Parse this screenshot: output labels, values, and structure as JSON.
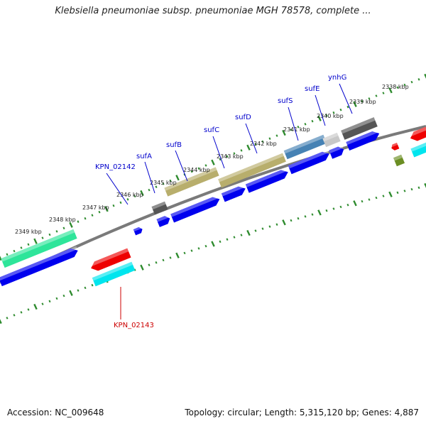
{
  "title": "Klebsiella pneumoniae subsp. pneumoniae MGH 78578, complete ...",
  "footer": {
    "accession": "Accession: NC_009648",
    "summary": "Topology: circular; Length: 5,315,120 bp; Genes: 4,887"
  },
  "colors": {
    "backbone": "#808080",
    "tick": "#2e8b2e",
    "cds_blue": "#0000ee",
    "cds_red": "#ee0000",
    "cds_cyan": "#00e5ee",
    "cds_green": "#2ee59a",
    "cds_gray": "#555555",
    "cds_lightgray": "#c8c8c8",
    "cds_steelblue": "#4682b4",
    "cds_khaki": "#b8ae6c",
    "cds_olive": "#6b8e23",
    "label_blue": "#0000cc",
    "label_red": "#cc0000"
  },
  "scale_labels": [
    "2338 kbp",
    "2339 kbp",
    "2340 kbp",
    "2341 kbp",
    "2342 kbp",
    "2343 kbp",
    "2344 kbp",
    "2345 kbp",
    "2346 kbp",
    "2347 kbp",
    "2348 kbp",
    "2349 kbp"
  ],
  "gene_labels": [
    {
      "text": "ynhG",
      "strand": "forward"
    },
    {
      "text": "sufE",
      "strand": "forward"
    },
    {
      "text": "sufS",
      "strand": "forward"
    },
    {
      "text": "sufD",
      "strand": "forward"
    },
    {
      "text": "sufC",
      "strand": "forward"
    },
    {
      "text": "sufB",
      "strand": "forward"
    },
    {
      "text": "sufA",
      "strand": "forward"
    },
    {
      "text": "KPN_02142",
      "strand": "forward"
    },
    {
      "text": "KPN_02143",
      "strand": "reverse"
    }
  ]
}
